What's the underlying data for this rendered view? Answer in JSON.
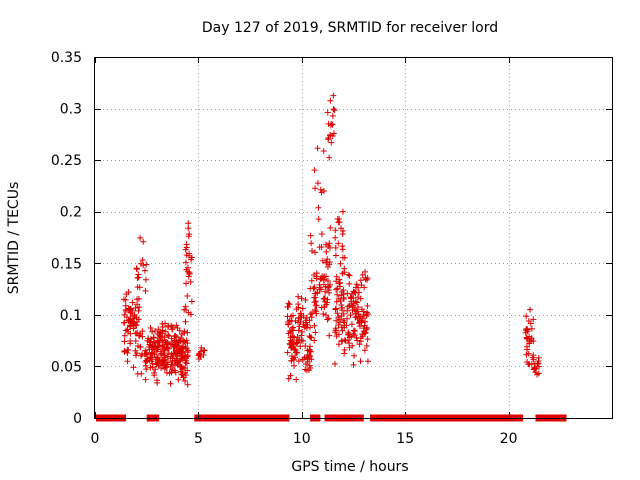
{
  "chart_data": {
    "type": "scatter",
    "title": "Day 127 of 2019, SRMTID for receiver lord",
    "xlabel": "GPS time / hours",
    "ylabel": "SRMTID / TECUs",
    "xlim": [
      0,
      25
    ],
    "ylim": [
      0,
      0.35
    ],
    "x_ticks": [
      0,
      5,
      10,
      15,
      20
    ],
    "x_tick_labels": [
      "0",
      "5",
      "10",
      "15",
      "20"
    ],
    "y_ticks": [
      0,
      0.05,
      0.1,
      0.15,
      0.2,
      0.25,
      0.3,
      0.35
    ],
    "y_tick_labels": [
      "0",
      "0.05",
      "0.1",
      "0.15",
      "0.2",
      "0.25",
      "0.3",
      "0.35"
    ],
    "grid": true,
    "marker": "+",
    "series_color": "#dd0000",
    "zero_segments": [
      [
        0.05,
        1.5
      ],
      [
        2.5,
        3.1
      ],
      [
        4.8,
        9.4
      ],
      [
        10.4,
        10.9
      ],
      [
        11.1,
        13.0
      ],
      [
        13.3,
        20.7
      ],
      [
        21.3,
        22.8
      ]
    ],
    "clusters": [
      {
        "x_range": [
          1.4,
          2.3
        ],
        "y_range": [
          0.04,
          0.13
        ],
        "count": 80
      },
      {
        "x_range": [
          2.0,
          2.5
        ],
        "y_range": [
          0.1,
          0.18
        ],
        "count": 20
      },
      {
        "x_range": [
          2.4,
          4.5
        ],
        "y_range": [
          0.03,
          0.095
        ],
        "count": 260
      },
      {
        "x_range": [
          4.3,
          4.7
        ],
        "y_range": [
          0.08,
          0.195
        ],
        "count": 30
      },
      {
        "x_range": [
          4.9,
          5.3
        ],
        "y_range": [
          0.055,
          0.07
        ],
        "count": 10
      },
      {
        "x_range": [
          9.3,
          10.5
        ],
        "y_range": [
          0.03,
          0.12
        ],
        "count": 120
      },
      {
        "x_range": [
          10.4,
          11.4
        ],
        "y_range": [
          0.06,
          0.2
        ],
        "count": 80
      },
      {
        "x_range": [
          11.2,
          11.6
        ],
        "y_range": [
          0.25,
          0.32
        ],
        "count": 18
      },
      {
        "x_range": [
          10.6,
          11.2
        ],
        "y_range": [
          0.18,
          0.27
        ],
        "count": 10
      },
      {
        "x_range": [
          11.6,
          12.1
        ],
        "y_range": [
          0.13,
          0.22
        ],
        "count": 20
      },
      {
        "x_range": [
          11.6,
          13.2
        ],
        "y_range": [
          0.045,
          0.15
        ],
        "count": 160
      },
      {
        "x_range": [
          20.8,
          21.2
        ],
        "y_range": [
          0.04,
          0.11
        ],
        "count": 30
      },
      {
        "x_range": [
          21.2,
          21.6
        ],
        "y_range": [
          0.035,
          0.06
        ],
        "count": 15
      }
    ]
  }
}
